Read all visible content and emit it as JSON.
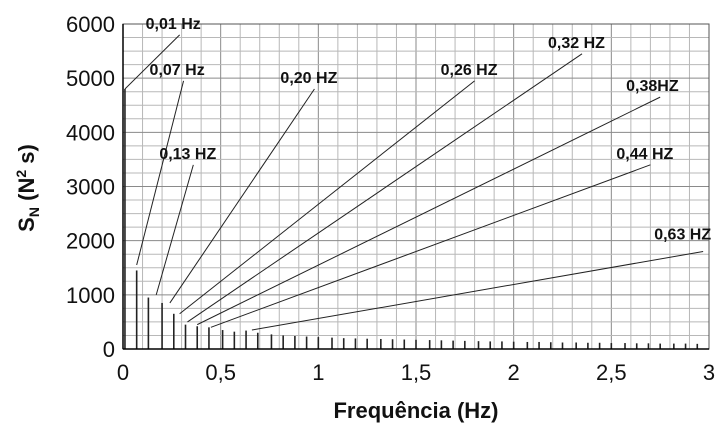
{
  "chart_data": {
    "type": "line",
    "title": "",
    "xlabel": "Frequência (Hz)",
    "ylabel": {
      "main": "S",
      "sub": "N",
      "open": " (N",
      "sup": "2",
      "close": " s)"
    },
    "xlim": [
      0,
      3
    ],
    "ylim": [
      0,
      6000
    ],
    "xticks": [
      0,
      0.5,
      1,
      1.5,
      2,
      2.5,
      3
    ],
    "xtick_labels": [
      "0",
      "0,5",
      "1",
      "1,5",
      "2",
      "2,5",
      "3"
    ],
    "yticks": [
      0,
      1000,
      2000,
      3000,
      4000,
      5000,
      6000
    ],
    "ytick_labels": [
      "0",
      "1000",
      "2000",
      "3000",
      "4000",
      "5000",
      "6000"
    ],
    "grid": true,
    "series": [
      {
        "x": [
          0.01,
          0.07,
          0.13,
          0.2,
          0.26,
          0.32,
          0.38,
          0.44,
          0.51,
          0.57,
          0.63,
          0.69,
          0.76,
          0.82,
          0.88,
          0.94,
          1.0,
          1.07,
          1.13,
          1.19,
          1.25,
          1.32,
          1.38,
          1.44,
          1.5,
          1.57,
          1.63,
          1.69,
          1.75,
          1.82,
          1.88,
          1.94,
          2.0,
          2.07,
          2.13,
          2.19,
          2.25,
          2.32,
          2.38,
          2.44,
          2.5,
          2.57,
          2.63,
          2.69,
          2.75,
          2.82,
          2.88,
          2.94
        ],
        "y": [
          4800,
          1450,
          950,
          850,
          650,
          450,
          420,
          400,
          350,
          320,
          340,
          300,
          270,
          250,
          240,
          230,
          220,
          210,
          200,
          195,
          190,
          185,
          180,
          175,
          170,
          165,
          160,
          155,
          150,
          145,
          140,
          140,
          135,
          130,
          130,
          125,
          120,
          120,
          115,
          115,
          110,
          110,
          105,
          105,
          100,
          100,
          100,
          95
        ]
      }
    ],
    "annotations": [
      {
        "text": "0,01 Hz",
        "x": 0.01,
        "y": 4800,
        "lx": 0.29,
        "ly": 5800
      },
      {
        "text": "0,07 Hz",
        "x": 0.07,
        "y": 1550,
        "lx": 0.31,
        "ly": 4950
      },
      {
        "text": "0,13 HZ",
        "x": 0.17,
        "y": 1000,
        "lx": 0.36,
        "ly": 3400
      },
      {
        "text": "0,20 HZ",
        "x": 0.24,
        "y": 850,
        "lx": 0.98,
        "ly": 4800
      },
      {
        "text": "0,26 HZ",
        "x": 0.29,
        "y": 650,
        "lx": 1.8,
        "ly": 4950
      },
      {
        "text": "0,32 HZ",
        "x": 0.33,
        "y": 500,
        "lx": 2.35,
        "ly": 5450
      },
      {
        "text": "0,38HZ",
        "x": 0.38,
        "y": 450,
        "lx": 2.75,
        "ly": 4650
      },
      {
        "text": "0,44 HZ",
        "x": 0.45,
        "y": 400,
        "lx": 2.7,
        "ly": 3400
      },
      {
        "text": "0,63 HZ",
        "x": 0.66,
        "y": 350,
        "lx": 2.97,
        "ly": 1800
      }
    ]
  }
}
